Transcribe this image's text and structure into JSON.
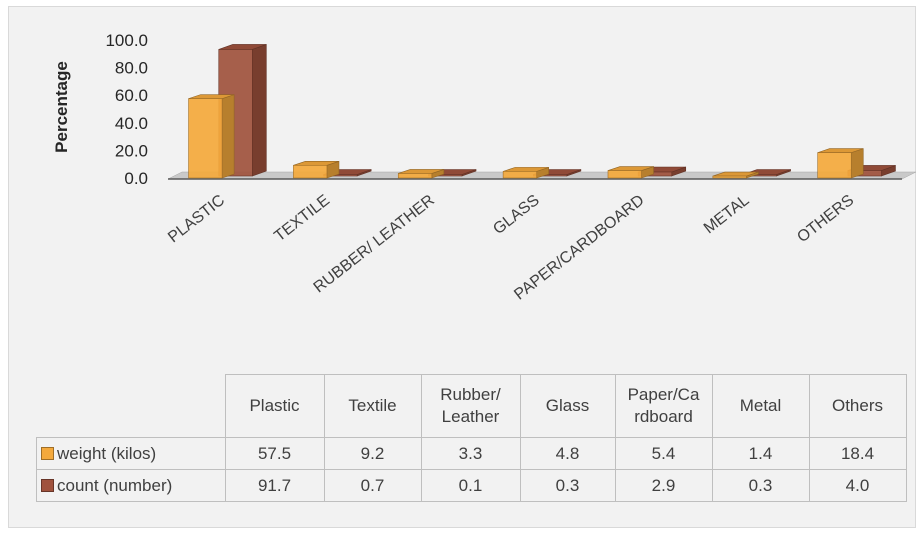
{
  "chart_data": {
    "type": "bar",
    "title": "",
    "ylabel": "Percentage",
    "xlabel": "",
    "ylim": [
      0,
      100
    ],
    "yticks": [
      "0.0",
      "20.0",
      "40.0",
      "60.0",
      "80.0",
      "100.0"
    ],
    "categories": [
      "PLASTIC",
      "TEXTILE",
      "RUBBER/ LEATHER",
      "GLASS",
      "PAPER/CARDBOARD",
      "METAL",
      "OTHERS"
    ],
    "series": [
      {
        "name": "weight (kilos)",
        "color": "#f4a93c",
        "values": [
          57.5,
          9.2,
          3.3,
          4.8,
          5.4,
          1.4,
          18.4
        ]
      },
      {
        "name": "count (number)",
        "color": "#a0523d",
        "values": [
          91.7,
          0.7,
          0.1,
          0.3,
          2.9,
          0.3,
          4.0
        ]
      }
    ],
    "legend": "data-table",
    "table": {
      "columns": [
        [
          "Plastic"
        ],
        [
          "Textile"
        ],
        [
          "Rubber/",
          "Leather"
        ],
        [
          "Glass"
        ],
        [
          "Paper/Ca",
          "rdboard"
        ],
        [
          "Metal"
        ],
        [
          "Others"
        ]
      ],
      "rows": [
        {
          "label": "weight (kilos)",
          "cells": [
            "57.5",
            "9.2",
            "3.3",
            "4.8",
            "5.4",
            "1.4",
            "18.4"
          ]
        },
        {
          "label": "count (number)",
          "cells": [
            "91.7",
            "0.7",
            "0.1",
            "0.3",
            "2.9",
            "0.3",
            "4.0"
          ]
        }
      ]
    }
  }
}
